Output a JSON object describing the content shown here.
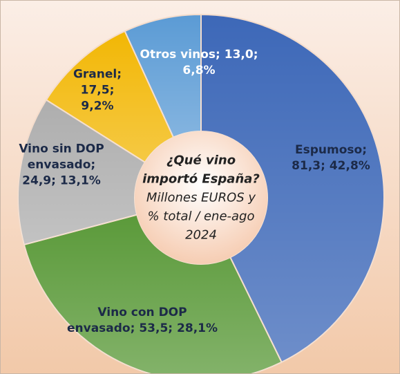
{
  "chart_data": {
    "type": "donut",
    "title": "¿Qué vino importó España?",
    "subtitle": "Millones EUROS y % total / ene-ago 2024",
    "separator": ";",
    "categories": [
      "Espumoso",
      "Vino con DOP envasado",
      "Vino sin DOP envasado",
      "Granel",
      "Otros vinos"
    ],
    "values": [
      81.3,
      53.5,
      24.9,
      17.5,
      13.0
    ],
    "value_labels": [
      "81,3",
      "53,5",
      "24,9",
      "17,5",
      "13,0"
    ],
    "percentages": [
      42.8,
      28.1,
      13.1,
      9.2,
      6.8
    ],
    "percentage_labels": [
      "42,8%",
      "28,1%",
      "13,1%",
      "9,2%",
      "6,8%"
    ],
    "colors": [
      "#3d68b8",
      "#5b9a3a",
      "#aeaeae",
      "#f2b705",
      "#5b9bd5"
    ],
    "label_colors": [
      "#1c2a48",
      "#1c2a48",
      "#1c2a48",
      "#1c2a48",
      "#ffffff"
    ]
  }
}
